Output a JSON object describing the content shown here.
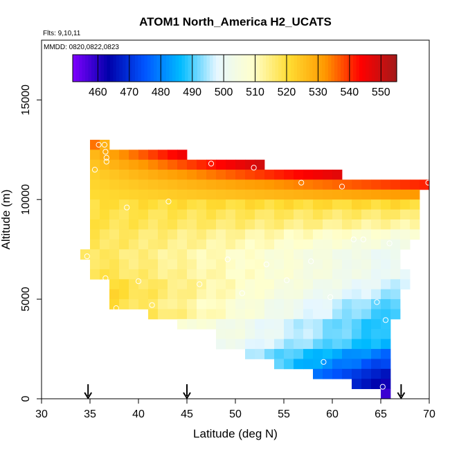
{
  "chart_data": {
    "type": "heatmap",
    "title": "ATOM1 North_America H2_UCATS",
    "flights_note": "Flts: 9,10,11",
    "dates_note": "MMDD: 0820,0822,0823",
    "xlabel": "Latitude (deg N)",
    "ylabel": "Altitude (m)",
    "xlim": [
      30,
      70
    ],
    "ylim": [
      0,
      18000
    ],
    "x_ticks": [
      30,
      35,
      40,
      45,
      50,
      55,
      60,
      65,
      70
    ],
    "y_ticks": [
      0,
      5000,
      10000,
      15000
    ],
    "colorbar": {
      "min": 452,
      "max": 555,
      "ticks": [
        460,
        470,
        480,
        490,
        500,
        510,
        520,
        530,
        540,
        550
      ],
      "colors": [
        "#7f00ff",
        "#0000aa",
        "#0055ff",
        "#00bbff",
        "#e6f7ff",
        "#ffffcc",
        "#ffdd33",
        "#ff9900",
        "#ff0000",
        "#a31a1a"
      ]
    },
    "grid_cell_size": {
      "lat_deg": 1.0,
      "alt_m": 500
    },
    "altitude_bands": [
      {
        "alt": 12750,
        "lat_from": 35.0,
        "lat_to": 37.0,
        "start": 535,
        "end": 528,
        "waves": 0
      },
      {
        "alt": 12250,
        "lat_from": 35.0,
        "lat_to": 45.0,
        "start": 527,
        "end": 545,
        "waves": 0
      },
      {
        "alt": 11750,
        "lat_from": 35.0,
        "lat_to": 53.0,
        "start": 525,
        "end": 549,
        "waves": 0
      },
      {
        "alt": 11250,
        "lat_from": 35.0,
        "lat_to": 61.0,
        "start": 523,
        "end": 547,
        "waves": 0
      },
      {
        "alt": 10750,
        "lat_from": 35.0,
        "lat_to": 70.0,
        "start": 522,
        "end": 541,
        "waves": 0
      },
      {
        "alt": 10250,
        "lat_from": 35.0,
        "lat_to": 69.0,
        "start": 521,
        "end": 532,
        "waves": 0
      },
      {
        "alt": 9750,
        "lat_from": 35.0,
        "lat_to": 69.0,
        "start": 520,
        "end": 521,
        "waves": 1
      },
      {
        "alt": 9250,
        "lat_from": 35.0,
        "lat_to": 69.0,
        "start": 519,
        "end": 516,
        "waves": 1
      },
      {
        "alt": 8750,
        "lat_from": 35.0,
        "lat_to": 69.0,
        "start": 519,
        "end": 512,
        "waves": 1
      },
      {
        "alt": 8250,
        "lat_from": 35.0,
        "lat_to": 69.0,
        "start": 518,
        "end": 506,
        "waves": 1
      },
      {
        "alt": 7750,
        "lat_from": 35.0,
        "lat_to": 68.0,
        "start": 518,
        "end": 503,
        "waves": 1
      },
      {
        "alt": 7250,
        "lat_from": 34.0,
        "lat_to": 67.0,
        "start": 518,
        "end": 500,
        "waves": 1
      },
      {
        "alt": 6750,
        "lat_from": 35.0,
        "lat_to": 67.0,
        "start": 518,
        "end": 500,
        "waves": 1
      },
      {
        "alt": 6250,
        "lat_from": 35.0,
        "lat_to": 68.0,
        "start": 519,
        "end": 499,
        "waves": 1
      },
      {
        "alt": 5750,
        "lat_from": 37.0,
        "lat_to": 68.0,
        "start": 520,
        "end": 496,
        "waves": 1
      },
      {
        "alt": 5250,
        "lat_from": 37.0,
        "lat_to": 67.0,
        "start": 521,
        "end": 494,
        "waves": 1
      },
      {
        "alt": 4750,
        "lat_from": 37.0,
        "lat_to": 67.0,
        "start": 520,
        "end": 490,
        "waves": 1
      },
      {
        "alt": 4250,
        "lat_from": 41.0,
        "lat_to": 67.0,
        "start": 518,
        "end": 488,
        "waves": 1
      },
      {
        "alt": 3750,
        "lat_from": 44.0,
        "lat_to": 66.0,
        "start": 508,
        "end": 487,
        "waves": 1
      },
      {
        "alt": 3250,
        "lat_from": 48.0,
        "lat_to": 66.0,
        "start": 505,
        "end": 487,
        "waves": 1
      },
      {
        "alt": 2750,
        "lat_from": 48.0,
        "lat_to": 66.0,
        "start": 502,
        "end": 485,
        "waves": 1
      },
      {
        "alt": 2250,
        "lat_from": 51.0,
        "lat_to": 66.0,
        "start": 495,
        "end": 478,
        "waves": 1
      },
      {
        "alt": 1750,
        "lat_from": 54.0,
        "lat_to": 66.0,
        "start": 490,
        "end": 472,
        "waves": 1
      },
      {
        "alt": 1250,
        "lat_from": 58.0,
        "lat_to": 66.0,
        "start": 478,
        "end": 466,
        "waves": 0
      },
      {
        "alt": 750,
        "lat_from": 62.0,
        "lat_to": 66.0,
        "start": 468,
        "end": 462,
        "waves": 0
      },
      {
        "alt": 250,
        "lat_from": 65.0,
        "lat_to": 66.0,
        "start": 458,
        "end": 458,
        "waves": 0
      }
    ],
    "observation_markers": [
      {
        "lat": 35.9,
        "alt": 12750
      },
      {
        "lat": 36.5,
        "alt": 12750
      },
      {
        "lat": 36.6,
        "alt": 12400
      },
      {
        "lat": 36.7,
        "alt": 12100
      },
      {
        "lat": 36.7,
        "alt": 11900
      },
      {
        "lat": 35.5,
        "alt": 11500
      },
      {
        "lat": 47.5,
        "alt": 11800
      },
      {
        "lat": 51.9,
        "alt": 11600
      },
      {
        "lat": 56.8,
        "alt": 10850
      },
      {
        "lat": 61.0,
        "alt": 10650
      },
      {
        "lat": 69.9,
        "alt": 10850
      },
      {
        "lat": 43.1,
        "alt": 9900
      },
      {
        "lat": 38.8,
        "alt": 9600
      },
      {
        "lat": 62.2,
        "alt": 8000
      },
      {
        "lat": 63.2,
        "alt": 8000
      },
      {
        "lat": 65.9,
        "alt": 7800
      },
      {
        "lat": 34.7,
        "alt": 7150
      },
      {
        "lat": 49.2,
        "alt": 7000
      },
      {
        "lat": 53.2,
        "alt": 6750
      },
      {
        "lat": 57.8,
        "alt": 6900
      },
      {
        "lat": 36.6,
        "alt": 6050
      },
      {
        "lat": 40.0,
        "alt": 5900
      },
      {
        "lat": 46.3,
        "alt": 5750
      },
      {
        "lat": 55.3,
        "alt": 5950
      },
      {
        "lat": 50.7,
        "alt": 5300
      },
      {
        "lat": 59.8,
        "alt": 5100
      },
      {
        "lat": 64.6,
        "alt": 4850
      },
      {
        "lat": 37.7,
        "alt": 4550
      },
      {
        "lat": 41.4,
        "alt": 4700
      },
      {
        "lat": 65.5,
        "alt": 3950
      },
      {
        "lat": 59.1,
        "alt": 1850
      },
      {
        "lat": 65.2,
        "alt": 600
      }
    ],
    "flight_arrows_lat": [
      34.8,
      45.0,
      67.1
    ]
  }
}
